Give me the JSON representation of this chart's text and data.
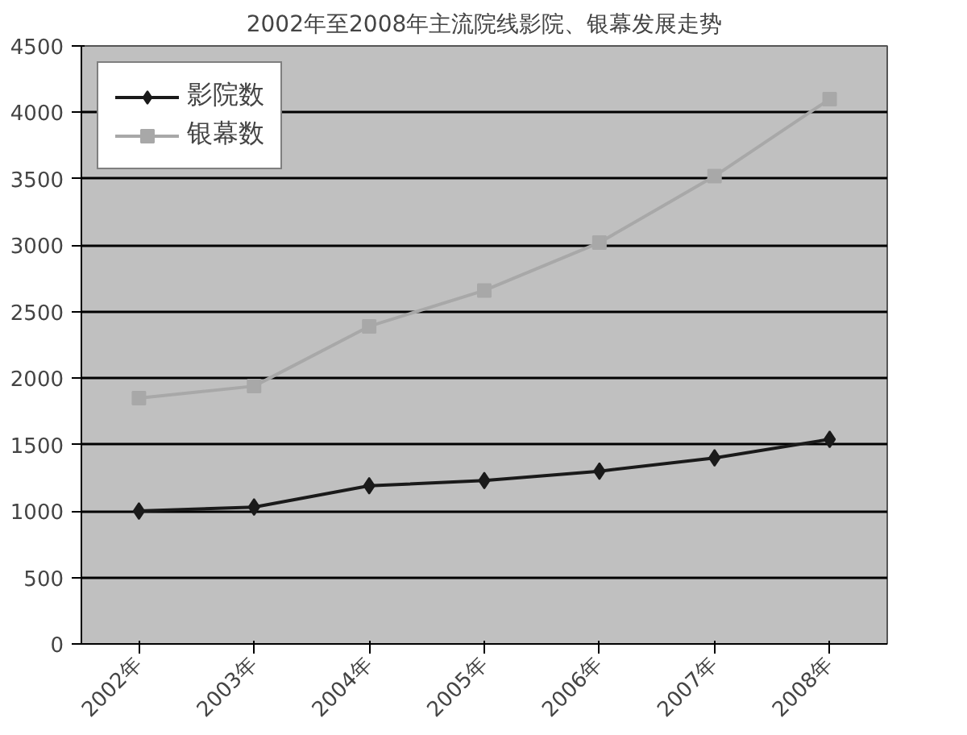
{
  "chart_data": {
    "type": "line",
    "title": "2002年至2008年主流院线影院、银幕发展走势",
    "categories": [
      "2002年",
      "2003年",
      "2004年",
      "2005年",
      "2006年",
      "2007年",
      "2008年"
    ],
    "series": [
      {
        "name": "影院数",
        "color": "#1a1a1a",
        "marker": "diamond",
        "values": [
          1000,
          1030,
          1190,
          1230,
          1300,
          1400,
          1540
        ]
      },
      {
        "name": "银幕数",
        "color": "#a8a8a8",
        "marker": "square",
        "values": [
          1850,
          1940,
          2390,
          2660,
          3020,
          3520,
          4100
        ]
      }
    ],
    "ylim": [
      0,
      4500
    ],
    "yticks": [
      0,
      500,
      1000,
      1500,
      2000,
      2500,
      3000,
      3500,
      4000,
      4500
    ],
    "grid": "y",
    "legend": "top left"
  }
}
